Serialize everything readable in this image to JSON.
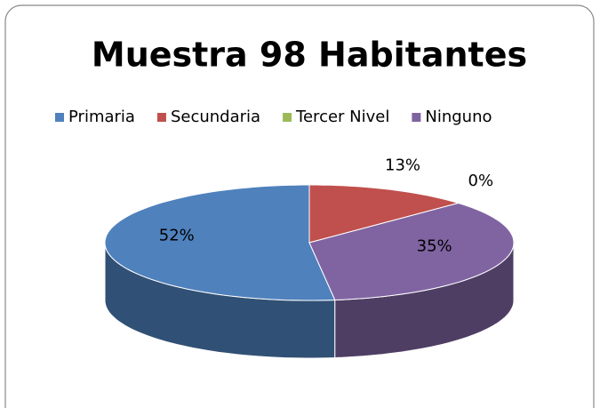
{
  "chart_data": {
    "type": "pie",
    "title": "Muestra 98 Habitantes",
    "categories": [
      "Primaria",
      "Secundaria",
      "Tercer Nivel",
      "Ninguno"
    ],
    "values": [
      52,
      13,
      0,
      35
    ],
    "value_labels": [
      "52%",
      "13%",
      "0%",
      "35%"
    ],
    "colors": [
      "#4f81bd",
      "#c0504d",
      "#9bbb59",
      "#8064a2"
    ],
    "legend": "top"
  }
}
